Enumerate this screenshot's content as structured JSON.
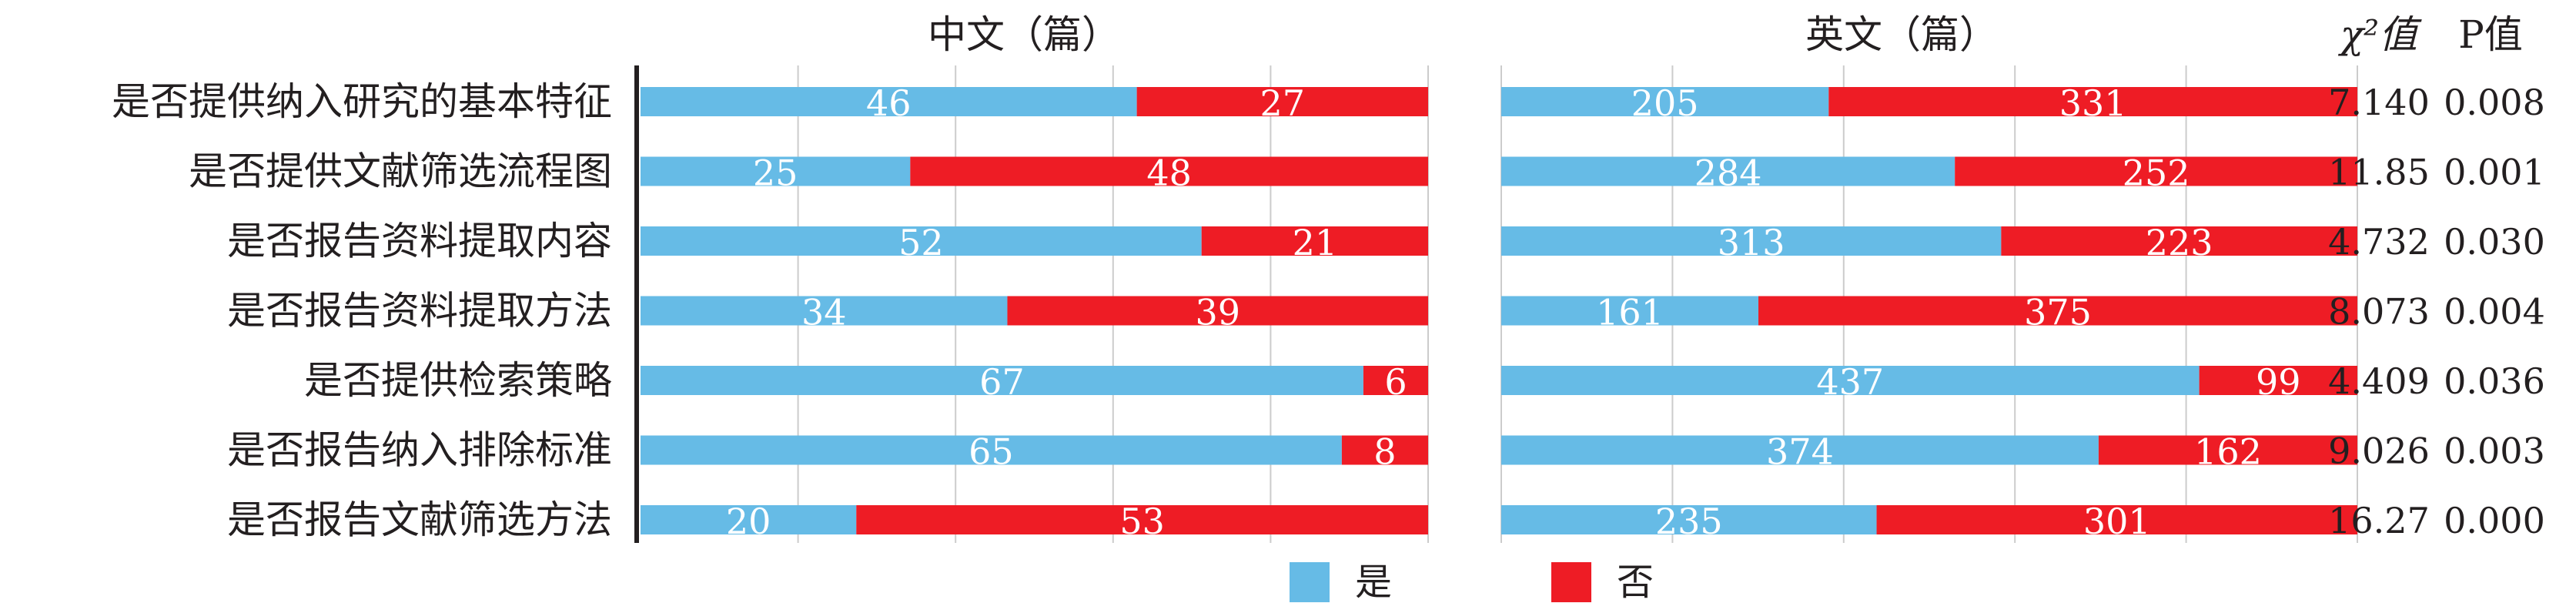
{
  "chart_data": {
    "type": "bar",
    "categories": [
      "是否提供纳入研究的基本特征",
      "是否提供文献筛选流程图",
      "是否报告资料提取内容",
      "是否报告资料提取方法",
      "是否提供检索策略",
      "是否报告纳入排除标准",
      "是否报告文献筛选方法"
    ],
    "panels": [
      {
        "title": "中文（篇）",
        "series": [
          {
            "name": "是",
            "values": [
              46,
              25,
              52,
              34,
              67,
              65,
              20
            ]
          },
          {
            "name": "否",
            "values": [
              27,
              48,
              21,
              39,
              6,
              8,
              53
            ]
          }
        ],
        "xlim": [
          0,
          73
        ]
      },
      {
        "title": "英文（篇）",
        "series": [
          {
            "name": "是",
            "values": [
              205,
              284,
              313,
              161,
              437,
              374,
              235
            ]
          },
          {
            "name": "否",
            "values": [
              331,
              252,
              223,
              375,
              99,
              162,
              301
            ]
          }
        ],
        "xlim": [
          0,
          536
        ]
      }
    ],
    "stats": {
      "chi_header": "χ²值",
      "p_header": "P值",
      "chi_values": [
        "7.140",
        "11.85",
        "4.732",
        "8.073",
        "4.409",
        "9.026",
        "16.27"
      ],
      "p_values": [
        "0.008",
        "0.001",
        "0.030",
        "0.004",
        "0.036",
        "0.003",
        "0.000"
      ]
    },
    "legend": {
      "position": "bottom-center",
      "labels": [
        "是",
        "否"
      ]
    },
    "stacked": true,
    "grid": true
  },
  "colors": {
    "yes": "#66bbe6",
    "no": "#ee1c25",
    "grid": "#cccccc",
    "axis": "#231f20",
    "label_on_bar": "#ffffff"
  }
}
